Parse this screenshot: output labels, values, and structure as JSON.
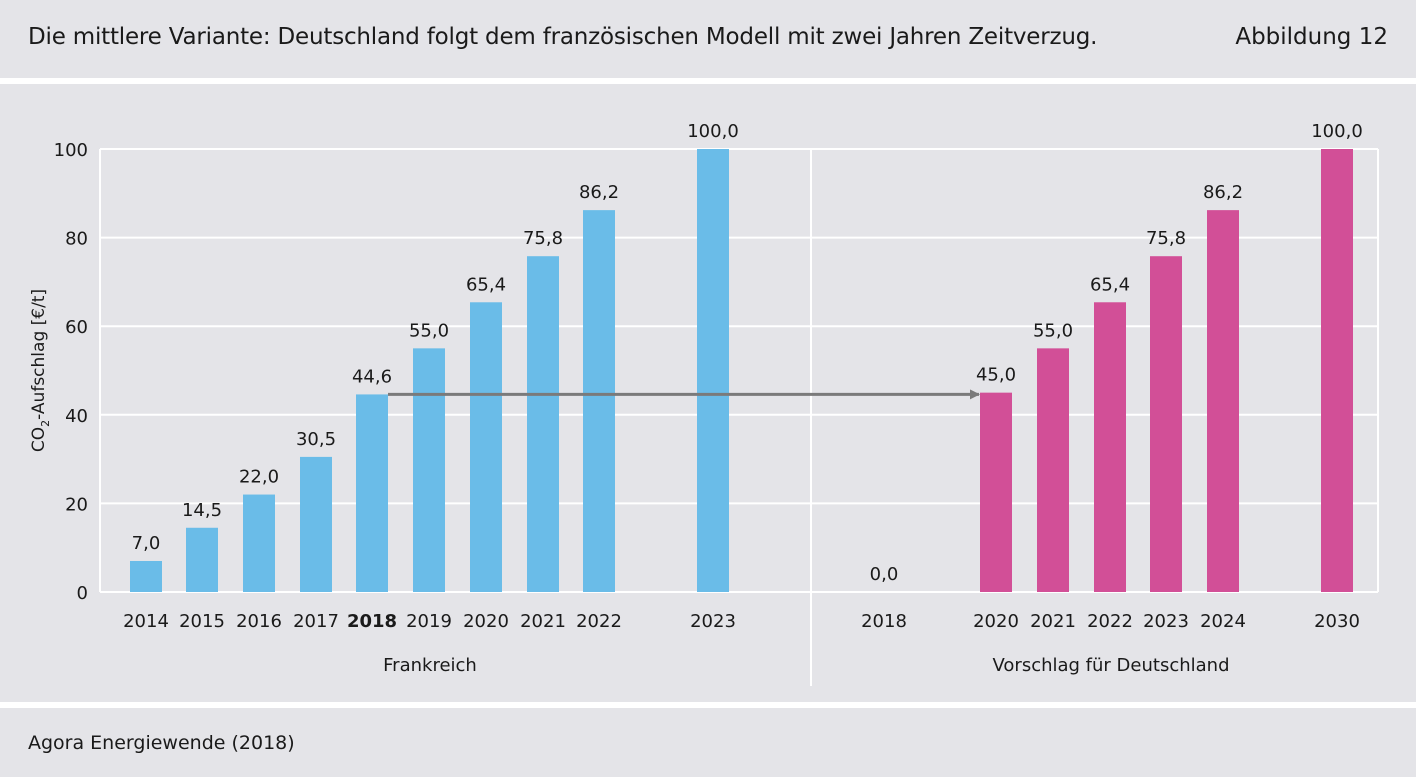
{
  "header": {
    "title": "Die mittlere Variante: Deutschland folgt dem französischen Modell mit zwei Jahren Zeitverzug.",
    "figure_label": "Abbildung 12"
  },
  "footer": {
    "source": "Agora Energiewende (2018)"
  },
  "chart_data": {
    "type": "bar",
    "ylabel": "CO₂-Aufschlag [€/t]",
    "ylabel_parts": {
      "pre": "CO",
      "sub": "2",
      "post": "-Aufschlag [€/t]"
    },
    "ylim": [
      0,
      100
    ],
    "yticks": [
      0,
      20,
      40,
      60,
      80,
      100
    ],
    "grid": true,
    "colors": {
      "frankreich": "#6abce8",
      "deutschland": "#d24f97",
      "arrow": "#7a7a7a"
    },
    "groups": [
      {
        "name": "Frankreich",
        "bars": [
          {
            "year": "2014",
            "value": 7.0,
            "label": "7,0"
          },
          {
            "year": "2015",
            "value": 14.5,
            "label": "14,5"
          },
          {
            "year": "2016",
            "value": 22.0,
            "label": "22,0"
          },
          {
            "year": "2017",
            "value": 30.5,
            "label": "30,5"
          },
          {
            "year": "2018",
            "value": 44.6,
            "label": "44,6",
            "bold": true
          },
          {
            "year": "2019",
            "value": 55.0,
            "label": "55,0"
          },
          {
            "year": "2020",
            "value": 65.4,
            "label": "65,4"
          },
          {
            "year": "2021",
            "value": 75.8,
            "label": "75,8"
          },
          {
            "year": "2022",
            "value": 86.2,
            "label": "86,2"
          },
          {
            "year": "2023",
            "value": 100.0,
            "label": "100,0"
          }
        ]
      },
      {
        "name": "Vorschlag für Deutschland",
        "bars": [
          {
            "year": "2018",
            "value": 0.0,
            "label": "0,0"
          },
          {
            "year": "2020",
            "value": 45.0,
            "label": "45,0"
          },
          {
            "year": "2021",
            "value": 55.0,
            "label": "55,0"
          },
          {
            "year": "2022",
            "value": 65.4,
            "label": "65,4"
          },
          {
            "year": "2023",
            "value": 75.8,
            "label": "75,8"
          },
          {
            "year": "2024",
            "value": 86.2,
            "label": "86,2"
          },
          {
            "year": "2030",
            "value": 100.0,
            "label": "100,0"
          }
        ]
      }
    ],
    "arrow": {
      "from": "Frankreich 2018",
      "to": "Deutschland 2020",
      "value": 44.6
    }
  }
}
